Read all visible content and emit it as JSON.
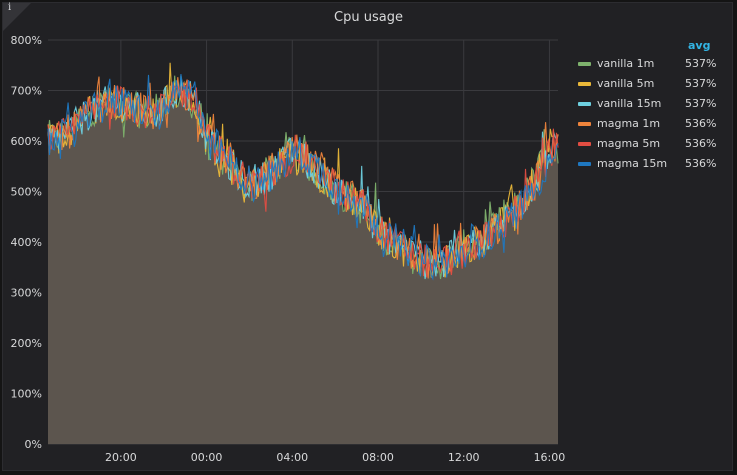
{
  "panel": {
    "info_icon": "i",
    "info_icon_name": "info-icon"
  },
  "legend": {
    "header": "avg"
  },
  "chart_data": {
    "type": "line",
    "title": "Cpu usage",
    "x_tick_labels": [
      "20:00",
      "00:00",
      "04:00",
      "08:00",
      "12:00",
      "16:00"
    ],
    "x_ticks_hours": [
      20,
      24,
      28,
      32,
      36,
      40
    ],
    "x_range_hours": [
      16.6,
      40.4
    ],
    "ylim": [
      0,
      800
    ],
    "y_ticks": [
      0,
      100,
      200,
      300,
      400,
      500,
      600,
      700,
      800
    ],
    "y_tick_format": "{v}%",
    "grid": true,
    "fill_area": true,
    "legend_position": "right",
    "trend": {
      "x_hours": [
        16.6,
        17.5,
        18.5,
        19.5,
        20.5,
        21.5,
        22.5,
        23.2,
        24.0,
        25.0,
        26.0,
        27.0,
        28.0,
        29.0,
        30.0,
        31.0,
        32.0,
        33.0,
        34.0,
        35.0,
        36.0,
        37.0,
        38.0,
        39.0,
        40.0,
        40.4
      ],
      "values": [
        600,
        620,
        660,
        680,
        665,
        650,
        700,
        690,
        600,
        550,
        510,
        540,
        580,
        545,
        500,
        480,
        420,
        390,
        360,
        360,
        390,
        410,
        450,
        500,
        590,
        575
      ]
    },
    "series": [
      {
        "name": "vanilla 1m",
        "color": "#7eb26d",
        "avg": "537%"
      },
      {
        "name": "vanilla 5m",
        "color": "#eab839",
        "avg": "537%"
      },
      {
        "name": "vanilla 15m",
        "color": "#6ed0e0",
        "avg": "537%"
      },
      {
        "name": "magma 1m",
        "color": "#ef843c",
        "avg": "536%"
      },
      {
        "name": "magma 5m",
        "color": "#e24d42",
        "avg": "536%"
      },
      {
        "name": "magma 15m",
        "color": "#1f78c1",
        "avg": "536%"
      }
    ]
  }
}
